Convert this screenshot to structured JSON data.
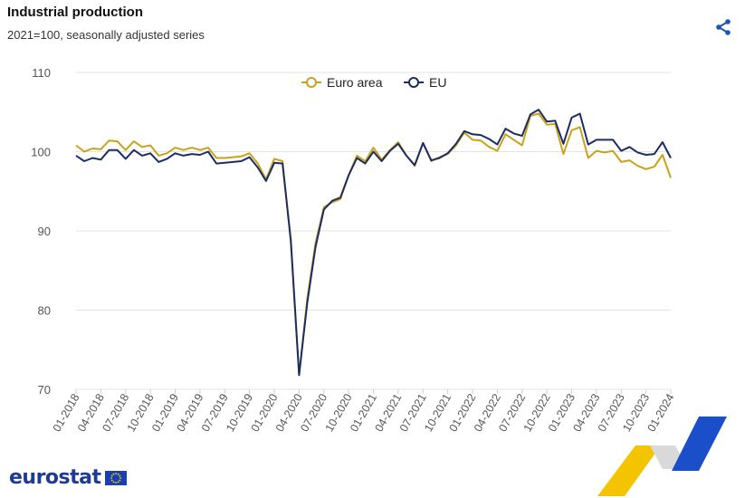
{
  "header": {
    "title": "Industrial production",
    "subtitle": "2021=100, seasonally adjusted series"
  },
  "share": {
    "icon": "share-icon",
    "color": "#1a56b0"
  },
  "logo": {
    "text": "eurostat",
    "flag_icon": "eu-flag-icon"
  },
  "colors": {
    "euro_area": "#c9a21a",
    "eu": "#1c2d64",
    "grid": "#e3e3e3",
    "axis_text": "#555555"
  },
  "chart_data": {
    "type": "line",
    "title": "Industrial production",
    "subtitle": "2021=100, seasonally adjusted series",
    "xlabel": "",
    "ylabel": "",
    "ylim": [
      70,
      110
    ],
    "yticks": [
      70,
      80,
      90,
      100,
      110
    ],
    "grid": true,
    "legend_position": "top-center",
    "x_tick_labels": [
      "01-2018",
      "04-2018",
      "07-2018",
      "10-2018",
      "01-2019",
      "04-2019",
      "07-2019",
      "10-2019",
      "01-2020",
      "04-2020",
      "07-2020",
      "10-2020",
      "01-2021",
      "04-2021",
      "07-2021",
      "10-2021",
      "01-2022",
      "04-2022",
      "07-2022",
      "10-2022",
      "01-2023",
      "04-2023",
      "07-2023",
      "10-2023",
      "01-2024"
    ],
    "x_start": "2018-01",
    "x_end": "2024-01",
    "series": [
      {
        "name": "Euro area",
        "values": [
          100.8,
          100.0,
          100.4,
          100.3,
          101.4,
          101.3,
          100.2,
          101.3,
          100.6,
          100.8,
          99.5,
          99.8,
          100.5,
          100.2,
          100.5,
          100.2,
          100.5,
          99.2,
          99.2,
          99.3,
          99.4,
          99.8,
          98.5,
          96.5,
          99.1,
          98.8,
          88.5,
          71.8,
          81.5,
          88.5,
          93.0,
          93.6,
          94.0,
          97.0,
          99.5,
          98.8,
          100.5,
          99.0,
          100.2,
          101.2,
          99.5,
          98.2,
          101.1,
          98.8,
          99.3,
          99.7,
          100.8,
          102.4,
          101.5,
          101.4,
          100.6,
          100.1,
          102.2,
          101.5,
          100.8,
          104.5,
          104.8,
          103.4,
          103.5,
          99.7,
          102.7,
          103.1,
          99.2,
          100.1,
          99.9,
          100.1,
          98.7,
          98.9,
          98.2,
          97.8,
          98.1,
          99.6,
          96.7
        ]
      },
      {
        "name": "EU",
        "values": [
          99.5,
          98.8,
          99.2,
          99.0,
          100.2,
          100.2,
          99.1,
          100.2,
          99.5,
          99.8,
          98.7,
          99.1,
          99.8,
          99.5,
          99.7,
          99.6,
          100.0,
          98.5,
          98.6,
          98.7,
          98.8,
          99.3,
          98.0,
          96.3,
          98.6,
          98.5,
          88.8,
          71.8,
          81.0,
          88.0,
          92.7,
          93.8,
          94.2,
          97.0,
          99.2,
          98.5,
          100.0,
          98.8,
          100.1,
          101.0,
          99.5,
          98.3,
          101.1,
          98.9,
          99.2,
          99.8,
          101.0,
          102.6,
          102.2,
          102.1,
          101.6,
          100.9,
          102.9,
          102.3,
          102.0,
          104.7,
          105.3,
          103.8,
          103.9,
          101.0,
          104.3,
          104.8,
          100.9,
          101.5,
          101.5,
          101.5,
          100.1,
          100.6,
          99.9,
          99.6,
          99.7,
          101.2,
          99.2
        ]
      }
    ]
  }
}
